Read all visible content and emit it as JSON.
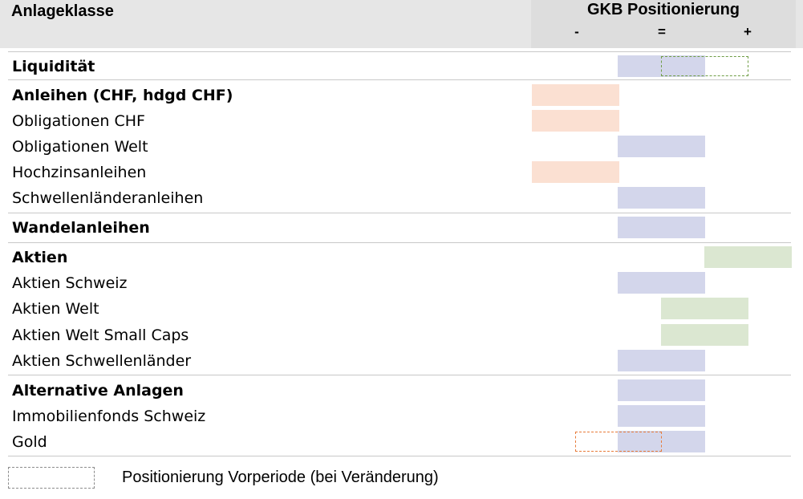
{
  "header": {
    "column_title": "Anlageklasse",
    "positioning_title": "GKB Positionierung",
    "scale_labels": [
      "-",
      "=",
      "+"
    ]
  },
  "legend": {
    "text": "Positionierung Vorperiode (bei Veränderung)"
  },
  "colors": {
    "negative": "#fbe0d2",
    "neutral": "#d3d6eb",
    "positive": "#dbe7d1",
    "previous_green": "#6f9d45",
    "previous_orange": "#e77b3a"
  },
  "chart_data": {
    "type": "table",
    "scale": [
      "-",
      "=",
      "+"
    ],
    "rows": [
      {
        "label": "Liquidität",
        "bold": true,
        "position": "=",
        "previous": "=/+"
      },
      {
        "label": "Anleihen (CHF, hdgd CHF)",
        "bold": true,
        "position": "-"
      },
      {
        "label": "Obligationen CHF",
        "bold": false,
        "position": "-"
      },
      {
        "label": "Obligationen Welt",
        "bold": false,
        "position": "="
      },
      {
        "label": "Hochzinsanleihen",
        "bold": false,
        "position": "-"
      },
      {
        "label": "Schwellenländeranleihen",
        "bold": false,
        "position": "="
      },
      {
        "label": "Wandelanleihen",
        "bold": true,
        "position": "="
      },
      {
        "label": "Aktien",
        "bold": true,
        "position": "+"
      },
      {
        "label": "Aktien Schweiz",
        "bold": false,
        "position": "="
      },
      {
        "label": "Aktien Welt",
        "bold": false,
        "position": "=/+"
      },
      {
        "label": "Aktien Welt Small Caps",
        "bold": false,
        "position": "=/+"
      },
      {
        "label": "Aktien Schwellenländer",
        "bold": false,
        "position": "="
      },
      {
        "label": "Alternative Anlagen",
        "bold": true,
        "position": "="
      },
      {
        "label": "Immobilienfonds Schweiz",
        "bold": false,
        "position": "="
      },
      {
        "label": "Gold",
        "bold": false,
        "position": "=",
        "previous": "-/="
      }
    ]
  }
}
